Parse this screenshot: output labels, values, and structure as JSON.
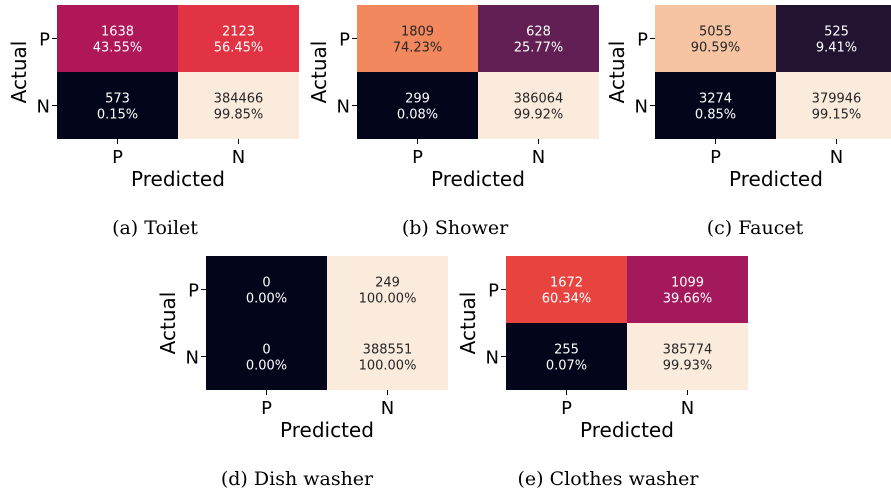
{
  "chart_data": [
    {
      "type": "heatmap",
      "caption": "(a) Toilet",
      "xlabel": "Predicted",
      "ylabel": "Actual",
      "x_ticks": [
        "P",
        "N"
      ],
      "y_ticks": [
        "P",
        "N"
      ],
      "cells": [
        [
          {
            "count": "1638",
            "pct": "43.55%",
            "color": "#b01759"
          },
          {
            "count": "2123",
            "pct": "56.45%",
            "color": "#e13343"
          }
        ],
        [
          {
            "count": "573",
            "pct": "0.15%",
            "color": "#03051a"
          },
          {
            "count": "384466",
            "pct": "99.85%",
            "color": "#faebdd"
          }
        ]
      ]
    },
    {
      "type": "heatmap",
      "caption": "(b) Shower",
      "xlabel": "Predicted",
      "ylabel": "Actual",
      "x_ticks": [
        "P",
        "N"
      ],
      "y_ticks": [
        "P",
        "N"
      ],
      "cells": [
        [
          {
            "count": "1809",
            "pct": "74.23%",
            "color": "#f3875e"
          },
          {
            "count": "628",
            "pct": "25.77%",
            "color": "#611f53"
          }
        ],
        [
          {
            "count": "299",
            "pct": "0.08%",
            "color": "#03051a"
          },
          {
            "count": "386064",
            "pct": "99.92%",
            "color": "#faebdd"
          }
        ]
      ]
    },
    {
      "type": "heatmap",
      "caption": "(c) Faucet",
      "xlabel": "Predicted",
      "ylabel": "Actual",
      "x_ticks": [
        "P",
        "N"
      ],
      "y_ticks": [
        "P",
        "N"
      ],
      "cells": [
        [
          {
            "count": "5055",
            "pct": "90.59%",
            "color": "#f6c4a3"
          },
          {
            "count": "525",
            "pct": "9.41%",
            "color": "#221331"
          }
        ],
        [
          {
            "count": "3274",
            "pct": "0.85%",
            "color": "#03051a"
          },
          {
            "count": "379946",
            "pct": "99.15%",
            "color": "#faebdd"
          }
        ]
      ]
    },
    {
      "type": "heatmap",
      "caption": "(d) Dish washer",
      "xlabel": "Predicted",
      "ylabel": "Actual",
      "x_ticks": [
        "P",
        "N"
      ],
      "y_ticks": [
        "P",
        "N"
      ],
      "cells": [
        [
          {
            "count": "0",
            "pct": "0.00%",
            "color": "#03051a"
          },
          {
            "count": "249",
            "pct": "100.00%",
            "color": "#faebdd"
          }
        ],
        [
          {
            "count": "0",
            "pct": "0.00%",
            "color": "#03051a"
          },
          {
            "count": "388551",
            "pct": "100.00%",
            "color": "#faebdd"
          }
        ]
      ]
    },
    {
      "type": "heatmap",
      "caption": "(e) Clothes washer",
      "xlabel": "Predicted",
      "ylabel": "Actual",
      "x_ticks": [
        "P",
        "N"
      ],
      "y_ticks": [
        "P",
        "N"
      ],
      "cells": [
        [
          {
            "count": "1672",
            "pct": "60.34%",
            "color": "#e8443f"
          },
          {
            "count": "1099",
            "pct": "39.66%",
            "color": "#a3195b"
          }
        ],
        [
          {
            "count": "255",
            "pct": "0.07%",
            "color": "#03051a"
          },
          {
            "count": "385774",
            "pct": "99.93%",
            "color": "#faebdd"
          }
        ]
      ]
    }
  ]
}
